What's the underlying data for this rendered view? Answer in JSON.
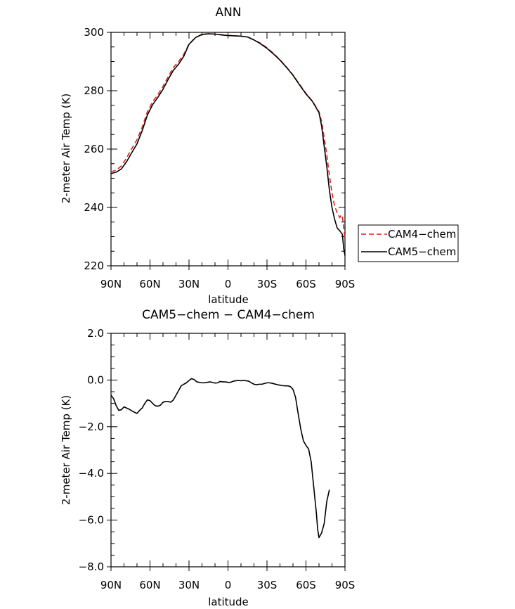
{
  "chart_data": [
    {
      "type": "line",
      "title": "ANN",
      "xlabel": "latitude",
      "ylabel": "2-meter Air Temp (K)",
      "xlim": [
        90,
        -90
      ],
      "ylim": [
        220,
        300
      ],
      "x_ticks": [
        90,
        60,
        30,
        0,
        -30,
        -60,
        -90
      ],
      "x_tick_labels": [
        "90N",
        "60N",
        "30N",
        "0",
        "30S",
        "60S",
        "90S"
      ],
      "y_ticks": [
        220,
        240,
        260,
        280,
        300
      ],
      "y_tick_labels": [
        "220",
        "240",
        "260",
        "280",
        "300"
      ],
      "legend_position": "right",
      "series": [
        {
          "name": "CAM4−chem",
          "color": "#e0201a",
          "dash": "dashed",
          "points": [
            [
              90,
              252.2
            ],
            [
              86,
              252.8
            ],
            [
              82,
              254.2
            ],
            [
              78,
              257
            ],
            [
              74,
              260.2
            ],
            [
              70,
              263.2
            ],
            [
              66,
              267.5
            ],
            [
              62,
              272.8
            ],
            [
              58,
              276.2
            ],
            [
              54,
              278.6
            ],
            [
              50,
              281.5
            ],
            [
              46,
              284.8
            ],
            [
              42,
              288
            ],
            [
              38,
              290
            ],
            [
              34,
              292.5
            ],
            [
              30,
              296
            ],
            [
              25,
              298.2
            ],
            [
              20,
              299.3
            ],
            [
              15,
              299.5
            ],
            [
              10,
              299.4
            ],
            [
              5,
              299.2
            ],
            [
              0,
              299
            ],
            [
              -5,
              298.8
            ],
            [
              -10,
              298.7
            ],
            [
              -15,
              298.4
            ],
            [
              -20,
              297.4
            ],
            [
              -25,
              296.3
            ],
            [
              -30,
              294.7
            ],
            [
              -35,
              292.8
            ],
            [
              -40,
              290.6
            ],
            [
              -45,
              288.1
            ],
            [
              -50,
              285.4
            ],
            [
              -55,
              282.2
            ],
            [
              -60,
              279.1
            ],
            [
              -65,
              276.4
            ],
            [
              -70,
              272.8
            ],
            [
              -72,
              269.5
            ],
            [
              -74,
              264
            ],
            [
              -76,
              258
            ],
            [
              -78,
              251
            ],
            [
              -80,
              245
            ],
            [
              -82,
              240.5
            ],
            [
              -84,
              238.2
            ],
            [
              -86,
              236.5
            ],
            [
              -87,
              237.4
            ],
            [
              -88,
              237
            ],
            [
              -90,
              229.5
            ]
          ]
        },
        {
          "name": "CAM5−chem",
          "color": "#000000",
          "dash": "solid",
          "points": [
            [
              90,
              251.6
            ],
            [
              86,
              252.1
            ],
            [
              82,
              253.2
            ],
            [
              78,
              255.7
            ],
            [
              74,
              258.8
            ],
            [
              70,
              261.8
            ],
            [
              66,
              266.3
            ],
            [
              62,
              271.7
            ],
            [
              58,
              275.2
            ],
            [
              54,
              277.7
            ],
            [
              50,
              280.5
            ],
            [
              46,
              283.9
            ],
            [
              42,
              287
            ],
            [
              38,
              289.1
            ],
            [
              34,
              291.8
            ],
            [
              30,
              295.9
            ],
            [
              25,
              298.2
            ],
            [
              20,
              299.3
            ],
            [
              15,
              299.5
            ],
            [
              10,
              299.4
            ],
            [
              5,
              299.1
            ],
            [
              0,
              298.9
            ],
            [
              -5,
              298.8
            ],
            [
              -10,
              298.7
            ],
            [
              -15,
              298.4
            ],
            [
              -20,
              297.4
            ],
            [
              -25,
              296.1
            ],
            [
              -30,
              294.5
            ],
            [
              -35,
              292.6
            ],
            [
              -40,
              290.5
            ],
            [
              -45,
              288
            ],
            [
              -50,
              285.3
            ],
            [
              -55,
              282
            ],
            [
              -60,
              278.9
            ],
            [
              -65,
              276.3
            ],
            [
              -70,
              272.5
            ],
            [
              -72,
              268
            ],
            [
              -74,
              261
            ],
            [
              -76,
              254
            ],
            [
              -78,
              246
            ],
            [
              -80,
              240
            ],
            [
              -82,
              236
            ],
            [
              -84,
              233
            ],
            [
              -86,
              232
            ],
            [
              -88,
              230.8
            ],
            [
              -89,
              226
            ],
            [
              -90,
              223.5
            ]
          ]
        }
      ]
    },
    {
      "type": "line",
      "title": "CAM5−chem − CAM4−chem",
      "xlabel": "latitude",
      "ylabel": "2-meter Air Temp (K)",
      "xlim": [
        90,
        -90
      ],
      "ylim": [
        -8,
        2
      ],
      "x_ticks": [
        90,
        60,
        30,
        0,
        -30,
        -60,
        -90
      ],
      "x_tick_labels": [
        "90N",
        "60N",
        "30N",
        "0",
        "30S",
        "60S",
        "90S"
      ],
      "y_ticks": [
        -8,
        -6,
        -4,
        -2,
        0,
        2
      ],
      "y_tick_labels": [
        "−8.0",
        "−6.0",
        "−4.0",
        "−2.0",
        "0.0",
        "2.0"
      ],
      "series": [
        {
          "color": "#000000",
          "dash": "solid",
          "points": [
            [
              90,
              -0.65
            ],
            [
              88,
              -0.8
            ],
            [
              86,
              -1.1
            ],
            [
              84,
              -1.3
            ],
            [
              82,
              -1.27
            ],
            [
              80,
              -1.15
            ],
            [
              78,
              -1.2
            ],
            [
              76,
              -1.25
            ],
            [
              74,
              -1.32
            ],
            [
              72,
              -1.38
            ],
            [
              70,
              -1.43
            ],
            [
              68,
              -1.3
            ],
            [
              66,
              -1.2
            ],
            [
              64,
              -1.0
            ],
            [
              62,
              -0.85
            ],
            [
              60,
              -0.88
            ],
            [
              58,
              -1.0
            ],
            [
              56,
              -1.1
            ],
            [
              54,
              -1.12
            ],
            [
              52,
              -1.08
            ],
            [
              50,
              -0.95
            ],
            [
              48,
              -0.92
            ],
            [
              46,
              -0.92
            ],
            [
              44,
              -0.95
            ],
            [
              42,
              -0.85
            ],
            [
              40,
              -0.65
            ],
            [
              38,
              -0.45
            ],
            [
              36,
              -0.25
            ],
            [
              34,
              -0.18
            ],
            [
              32,
              -0.12
            ],
            [
              30,
              -0.02
            ],
            [
              28,
              0.06
            ],
            [
              26,
              0.02
            ],
            [
              24,
              -0.08
            ],
            [
              22,
              -0.1
            ],
            [
              20,
              -0.12
            ],
            [
              18,
              -0.12
            ],
            [
              16,
              -0.1
            ],
            [
              14,
              -0.08
            ],
            [
              12,
              -0.1
            ],
            [
              10,
              -0.13
            ],
            [
              8,
              -0.12
            ],
            [
              6,
              -0.06
            ],
            [
              4,
              -0.08
            ],
            [
              2,
              -0.08
            ],
            [
              0,
              -0.1
            ],
            [
              -2,
              -0.1
            ],
            [
              -4,
              -0.05
            ],
            [
              -6,
              -0.03
            ],
            [
              -8,
              -0.02
            ],
            [
              -10,
              -0.03
            ],
            [
              -12,
              -0.02
            ],
            [
              -14,
              -0.03
            ],
            [
              -16,
              -0.05
            ],
            [
              -18,
              -0.12
            ],
            [
              -20,
              -0.18
            ],
            [
              -22,
              -0.2
            ],
            [
              -24,
              -0.18
            ],
            [
              -26,
              -0.18
            ],
            [
              -28,
              -0.15
            ],
            [
              -30,
              -0.12
            ],
            [
              -32,
              -0.12
            ],
            [
              -34,
              -0.14
            ],
            [
              -36,
              -0.17
            ],
            [
              -38,
              -0.2
            ],
            [
              -40,
              -0.22
            ],
            [
              -42,
              -0.24
            ],
            [
              -44,
              -0.25
            ],
            [
              -46,
              -0.25
            ],
            [
              -48,
              -0.28
            ],
            [
              -50,
              -0.4
            ],
            [
              -52,
              -0.75
            ],
            [
              -54,
              -1.45
            ],
            [
              -56,
              -2.1
            ],
            [
              -58,
              -2.6
            ],
            [
              -60,
              -2.8
            ],
            [
              -62,
              -2.95
            ],
            [
              -64,
              -3.5
            ],
            [
              -66,
              -4.6
            ],
            [
              -68,
              -5.7
            ],
            [
              -69,
              -6.4
            ],
            [
              -70,
              -6.75
            ],
            [
              -72,
              -6.55
            ],
            [
              -74,
              -6.15
            ],
            [
              -76,
              -5.2
            ],
            [
              -78,
              -4.7
            ]
          ]
        }
      ]
    }
  ]
}
